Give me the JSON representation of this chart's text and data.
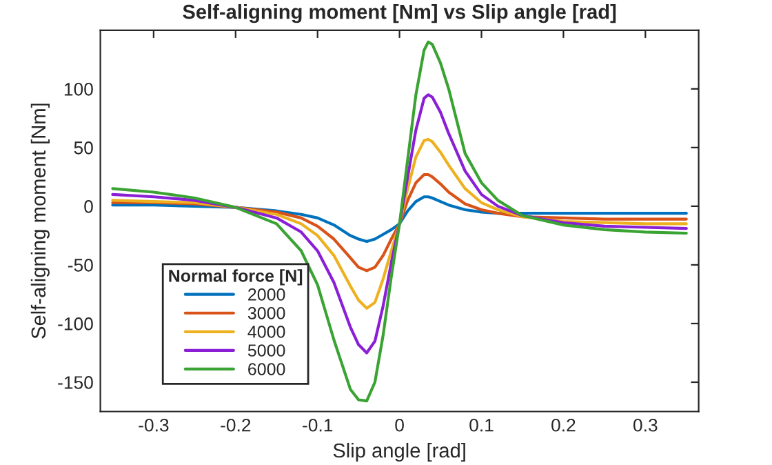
{
  "chart_data": {
    "type": "line",
    "title": "Self-aligning moment [Nm] vs Slip angle [rad]",
    "xlabel": "Slip angle [rad]",
    "ylabel": "Self-aligning moment [Nm]",
    "legend_title": "Normal force [N]",
    "legend": "bottom left",
    "grid": false,
    "marker": "none",
    "line_style": "solid",
    "x": [
      -0.35,
      -0.3,
      -0.25,
      -0.2,
      -0.15,
      -0.12,
      -0.1,
      -0.08,
      -0.06,
      -0.05,
      -0.04,
      -0.03,
      -0.02,
      -0.01,
      0,
      0.01,
      0.02,
      0.03,
      0.035,
      0.04,
      0.05,
      0.06,
      0.08,
      0.1,
      0.12,
      0.15,
      0.2,
      0.25,
      0.3,
      0.35
    ],
    "xlim": [
      -0.365,
      0.365
    ],
    "xticks": [
      -0.3,
      -0.2,
      -0.1,
      0,
      0.1,
      0.2,
      0.3
    ],
    "ylim": [
      -175,
      150
    ],
    "yticks": [
      -150,
      -100,
      -50,
      0,
      50,
      100
    ],
    "series": [
      {
        "name": "2000",
        "color": "#0072bd",
        "values": [
          1,
          1,
          0,
          -1,
          -4,
          -7,
          -10,
          -16,
          -25,
          -28,
          -30,
          -28,
          -24,
          -20,
          -15,
          -4,
          4,
          8,
          8,
          7,
          4,
          1,
          -3,
          -5,
          -6,
          -6,
          -6,
          -6,
          -6,
          -6
        ]
      },
      {
        "name": "3000",
        "color": "#d95319",
        "values": [
          3,
          3,
          2,
          -1,
          -5,
          -10,
          -17,
          -28,
          -44,
          -52,
          -55,
          -52,
          -42,
          -28,
          -15,
          5,
          20,
          27,
          27,
          25,
          19,
          12,
          2,
          -3,
          -6,
          -9,
          -10,
          -11,
          -11,
          -11
        ]
      },
      {
        "name": "4000",
        "color": "#edb120",
        "values": [
          5,
          4,
          3,
          -1,
          -7,
          -15,
          -25,
          -42,
          -68,
          -80,
          -87,
          -82,
          -62,
          -38,
          -15,
          15,
          42,
          56,
          57,
          55,
          46,
          35,
          15,
          3,
          -3,
          -9,
          -13,
          -14,
          -15,
          -15
        ]
      },
      {
        "name": "5000",
        "color": "#8a1fd6",
        "values": [
          10,
          8,
          5,
          -1,
          -10,
          -22,
          -38,
          -65,
          -103,
          -118,
          -125,
          -115,
          -85,
          -48,
          -15,
          25,
          65,
          92,
          95,
          93,
          80,
          62,
          30,
          10,
          0,
          -8,
          -14,
          -17,
          -18,
          -19
        ]
      },
      {
        "name": "6000",
        "color": "#3aa333",
        "values": [
          15,
          12,
          7,
          -1,
          -15,
          -38,
          -67,
          -114,
          -156,
          -165,
          -166,
          -150,
          -110,
          -60,
          -15,
          40,
          95,
          133,
          140,
          138,
          122,
          100,
          45,
          20,
          5,
          -8,
          -16,
          -20,
          -22,
          -23
        ]
      }
    ]
  }
}
